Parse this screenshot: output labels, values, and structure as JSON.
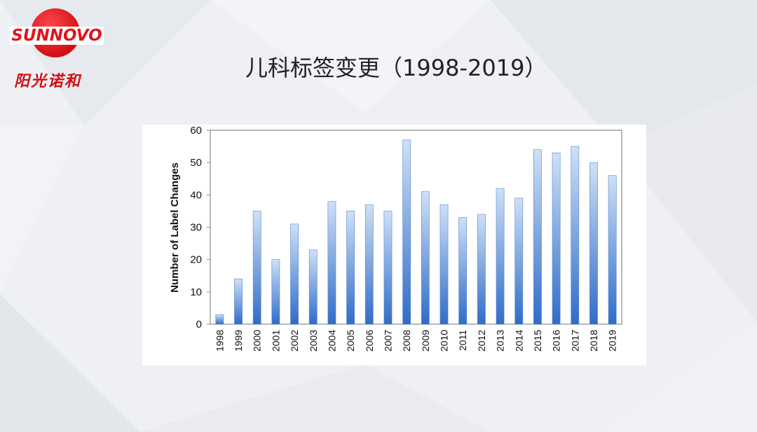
{
  "header": {
    "logo_text": "SUNNOVO",
    "logo_cn": "阳光诺和",
    "title": "儿科标签变更（1998-2019）"
  },
  "colors": {
    "brand_red": "#e0141b",
    "bar_light": "#c9dcf4",
    "bar_dark": "#2f6cc8"
  },
  "chart_data": {
    "type": "bar",
    "categories": [
      "1998",
      "1999",
      "2000",
      "2001",
      "2002",
      "2003",
      "2004",
      "2005",
      "2006",
      "2007",
      "2008",
      "2009",
      "2010",
      "2011",
      "2012",
      "2013",
      "2014",
      "2015",
      "2016",
      "2017",
      "2018",
      "2019"
    ],
    "values": [
      3,
      14,
      35,
      20,
      31,
      23,
      38,
      35,
      37,
      35,
      57,
      41,
      37,
      33,
      34,
      42,
      39,
      54,
      53,
      55,
      50,
      46
    ],
    "title": "",
    "xlabel": "",
    "ylabel": "Number of Label Changes",
    "ylim": [
      0,
      60
    ],
    "yticks": [
      0,
      10,
      20,
      30,
      40,
      50,
      60
    ],
    "grid": false
  }
}
